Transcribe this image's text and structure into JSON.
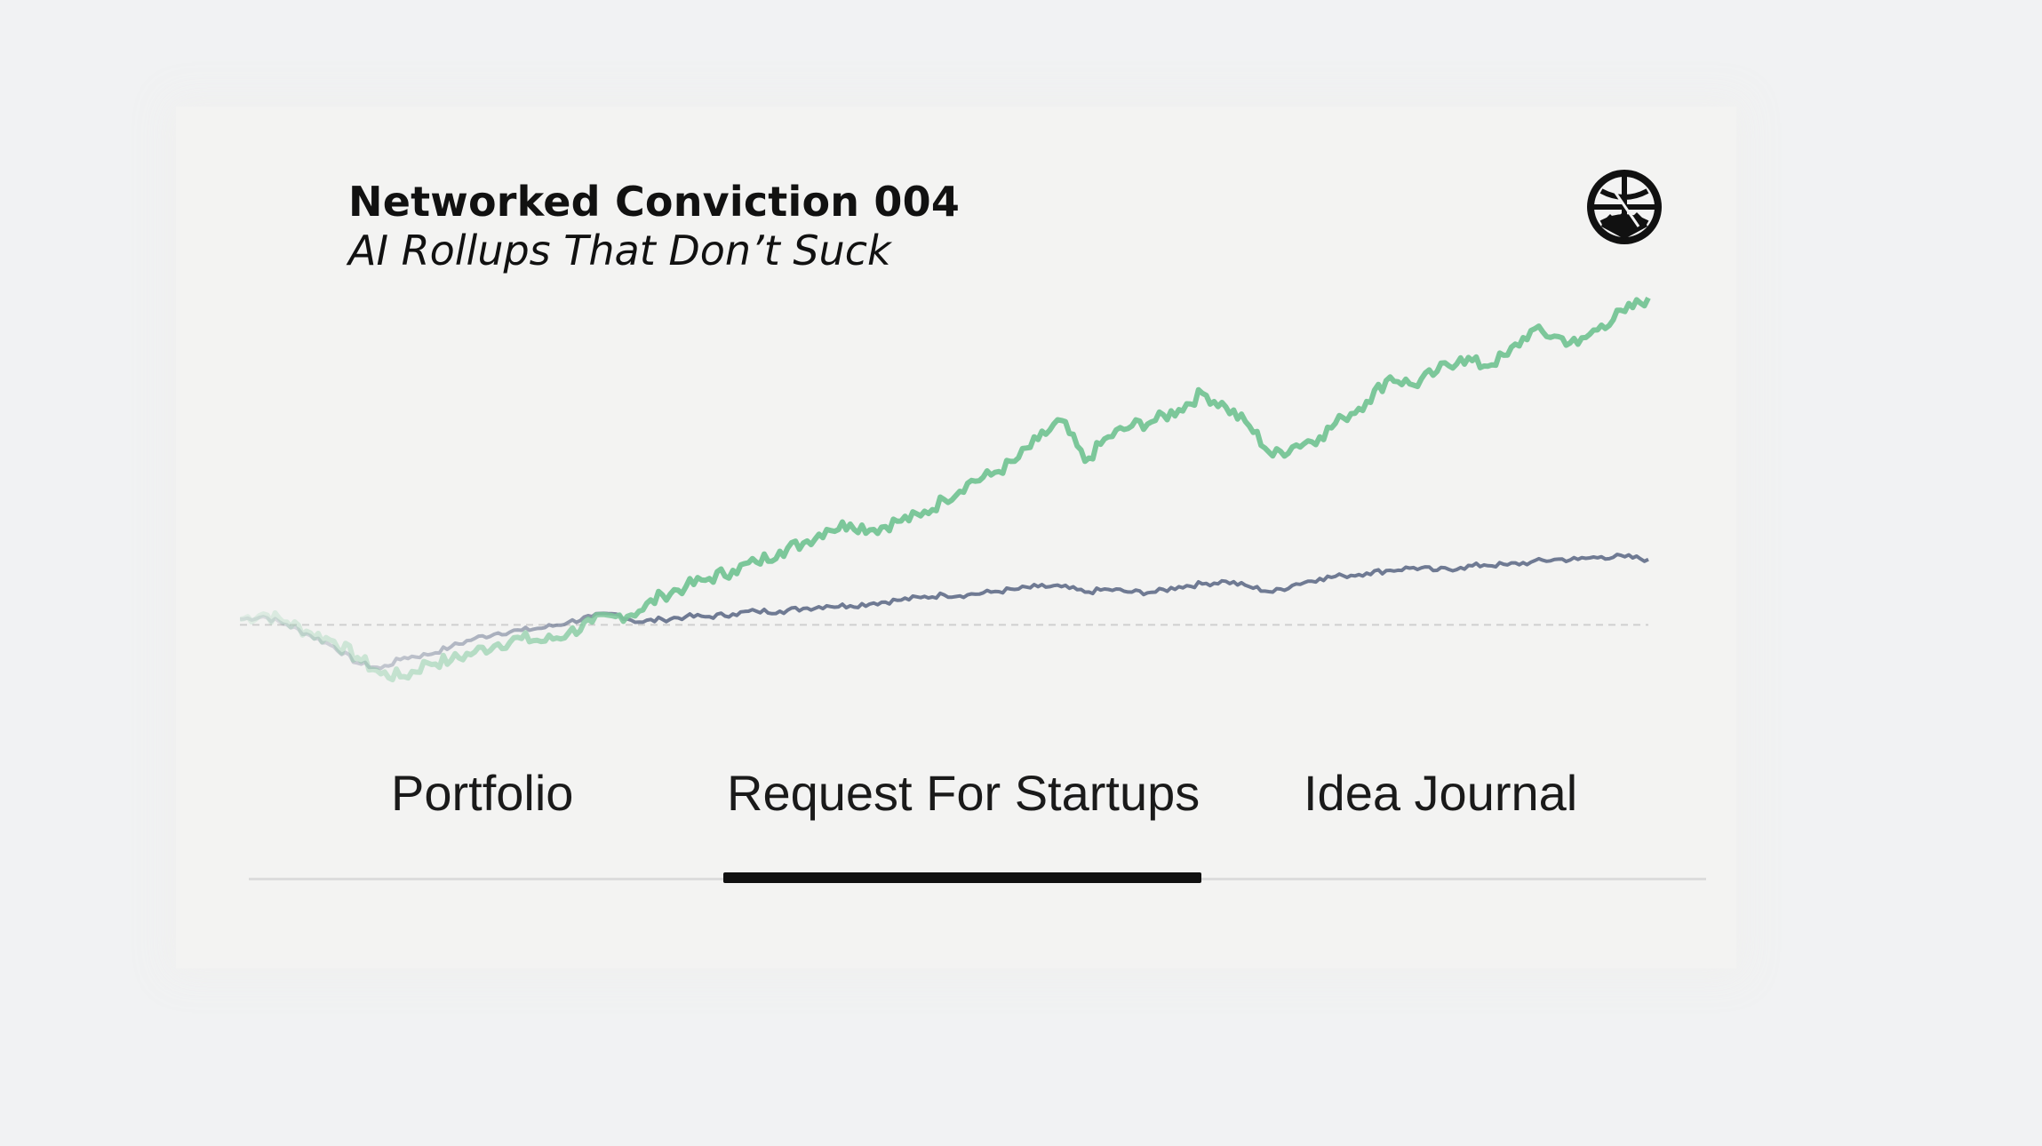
{
  "header": {
    "title": "Networked Conviction 004",
    "subtitle": "AI Rollups That Don’t Suck"
  },
  "logo": {
    "icon": "globe-cracked-logo-icon"
  },
  "tabs": [
    {
      "label": "Portfolio",
      "active": false
    },
    {
      "label": "Request For Startups",
      "active": true
    },
    {
      "label": "Idea Journal",
      "active": false
    }
  ],
  "colors": {
    "green_series": "#7cc79a",
    "blue_series": "#6f7a93",
    "baseline": "#cfcfcf",
    "indicator": "#111111"
  },
  "chart_data": {
    "type": "line",
    "title": "",
    "xlabel": "",
    "ylabel": "",
    "ylim": [
      -25,
      125
    ],
    "series": [
      {
        "name": "green",
        "values": [
          2,
          4,
          1,
          -3,
          -6,
          -12,
          -18,
          -19,
          -14,
          -13,
          -10,
          -7,
          -5,
          -6,
          -3,
          1,
          3,
          5,
          11,
          14,
          17,
          20,
          23,
          27,
          30,
          35,
          37,
          35,
          38,
          40,
          46,
          52,
          55,
          60,
          68,
          75,
          60,
          69,
          73,
          75,
          79,
          85,
          80,
          73,
          62,
          66,
          69,
          76,
          82,
          91,
          88,
          93,
          98,
          95,
          99,
          108,
          106,
          103,
          110,
          115,
          120
        ]
      },
      {
        "name": "blue",
        "values": [
          2,
          3,
          0,
          -4,
          -8,
          -14,
          -16,
          -12,
          -11,
          -8,
          -5,
          -3,
          -2,
          -1,
          1,
          3,
          4,
          1,
          2,
          3,
          3,
          4,
          5,
          5,
          6,
          7,
          7,
          8,
          9,
          10,
          11,
          11,
          12,
          13,
          14,
          14,
          12,
          13,
          12,
          12,
          14,
          15,
          16,
          14,
          12,
          15,
          17,
          18,
          19,
          20,
          21,
          20,
          21,
          22,
          22,
          23,
          24,
          24,
          25,
          25,
          24
        ]
      }
    ],
    "baseline": 0
  }
}
